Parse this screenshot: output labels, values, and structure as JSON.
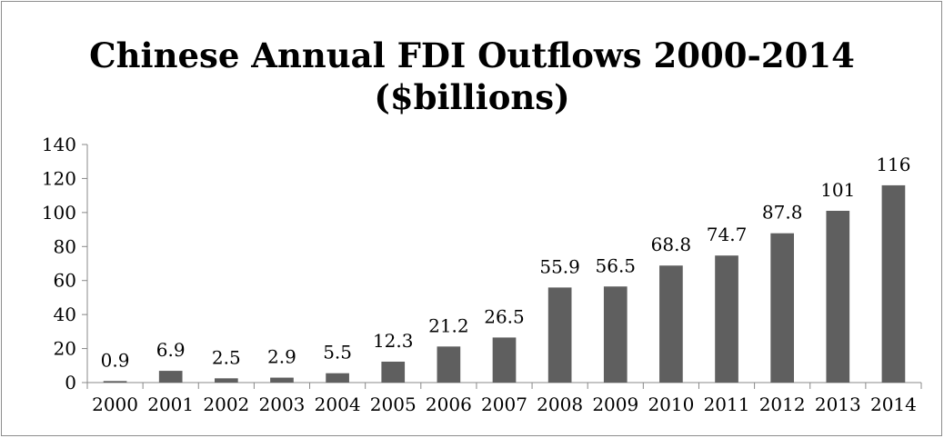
{
  "chart_data": {
    "type": "bar",
    "title": "Chinese Annual FDI Outflows 2000-2014",
    "subtitle": "($billions)",
    "categories": [
      "2000",
      "2001",
      "2002",
      "2003",
      "2004",
      "2005",
      "2006",
      "2007",
      "2008",
      "2009",
      "2010",
      "2011",
      "2012",
      "2013",
      "2014"
    ],
    "values": [
      0.9,
      6.9,
      2.5,
      2.9,
      5.5,
      12.3,
      21.2,
      26.5,
      55.9,
      56.5,
      68.8,
      74.7,
      87.8,
      101,
      116
    ],
    "data_labels": [
      "0.9",
      "6.9",
      "2.5",
      "2.9",
      "5.5",
      "12.3",
      "21.2",
      "26.5",
      "55.9",
      "56.5",
      "68.8",
      "74.7",
      "87.8",
      "101",
      "116"
    ],
    "y_ticks": [
      0,
      20,
      40,
      60,
      80,
      100,
      120,
      140
    ],
    "ylim": [
      0,
      140
    ],
    "xlabel": "",
    "ylabel": "",
    "grid": false,
    "legend": "none",
    "bar_color": "#5f5f5f"
  }
}
